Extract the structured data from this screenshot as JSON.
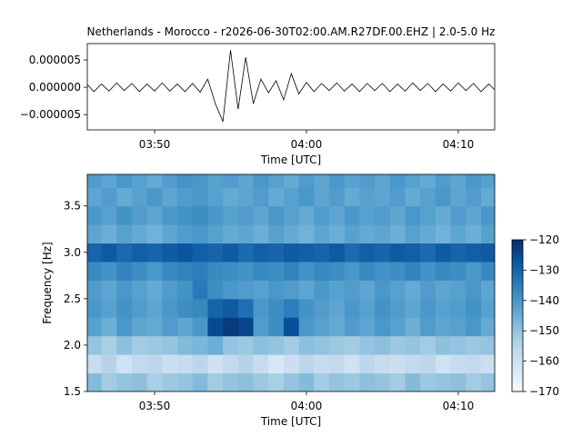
{
  "chart_data": [
    {
      "type": "line",
      "title": "Netherlands - Morocco - r2026-06-30T02:00.AM.R27DF.00.EHZ | 2.0-5.0 Hz",
      "x_label": "Time [UTC]",
      "color": "#000000",
      "x": [
        "03:45:30",
        "03:46:00",
        "03:46:30",
        "03:47:00",
        "03:47:30",
        "03:48:00",
        "03:48:30",
        "03:49:00",
        "03:49:30",
        "03:50:00",
        "03:50:30",
        "03:51:00",
        "03:51:30",
        "03:52:00",
        "03:52:30",
        "03:53:00",
        "03:53:30",
        "03:54:00",
        "03:54:30",
        "03:55:00",
        "03:55:30",
        "03:56:00",
        "03:56:30",
        "03:57:00",
        "03:57:30",
        "03:58:00",
        "03:58:30",
        "03:59:00",
        "03:59:30",
        "04:00:00",
        "04:00:30",
        "04:01:00",
        "04:01:30",
        "04:02:00",
        "04:02:30",
        "04:03:00",
        "04:03:30",
        "04:04:00",
        "04:04:30",
        "04:05:00",
        "04:05:30",
        "04:06:00",
        "04:06:30",
        "04:07:00",
        "04:07:30",
        "04:08:00",
        "04:08:30",
        "04:09:00",
        "04:09:30",
        "04:10:00",
        "04:10:30",
        "04:11:00",
        "04:11:30",
        "04:12:00",
        "04:12:30"
      ],
      "values": [
        7e-07,
        -8e-07,
        6e-07,
        -7e-07,
        8e-07,
        -6e-07,
        7e-07,
        -8e-07,
        6e-07,
        -7e-07,
        8e-07,
        -7e-07,
        6e-07,
        -8e-07,
        7e-07,
        -9e-07,
        1.5e-06,
        -3e-06,
        -6.3e-06,
        6.8e-06,
        -4e-06,
        5.5e-06,
        -3e-06,
        1.5e-06,
        -1e-06,
        1.2e-06,
        -2.3e-06,
        2.5e-06,
        -1.2e-06,
        9e-07,
        -8e-07,
        7e-07,
        -6e-07,
        8e-07,
        -7e-07,
        6e-07,
        -8e-07,
        7e-07,
        -6e-07,
        7e-07,
        -8e-07,
        6e-07,
        -7e-07,
        8e-07,
        -6e-07,
        7e-07,
        -8e-07,
        6e-07,
        -7e-07,
        8e-07,
        -6e-07,
        7e-07,
        -8e-07,
        6e-07,
        -7e-07
      ],
      "xlim": [
        "03:45:34",
        "04:12:24"
      ],
      "xticks": [
        "03:50",
        "04:00",
        "04:10"
      ],
      "ylim": [
        -7.8e-06,
        8e-06
      ],
      "yticks": [
        {
          "value": -5e-06,
          "label": "−0.000005"
        },
        {
          "value": 0,
          "label": "0.000000"
        },
        {
          "value": 5e-06,
          "label": "0.000005"
        }
      ]
    },
    {
      "type": "heatmap",
      "x_label": "Time [UTC]",
      "y_label": "Frequency [Hz]",
      "colormap": "Blues",
      "clim": [
        -170,
        -120
      ],
      "colorbar_ticks": [
        {
          "value": -120,
          "label": "−120"
        },
        {
          "value": -130,
          "label": "−130"
        },
        {
          "value": -140,
          "label": "−140"
        },
        {
          "value": -150,
          "label": "−150"
        },
        {
          "value": -160,
          "label": "−160"
        },
        {
          "value": -170,
          "label": "−170"
        }
      ],
      "x": [
        "03:46",
        "03:47",
        "03:48",
        "03:49",
        "03:50",
        "03:51",
        "03:52",
        "03:53",
        "03:54",
        "03:55",
        "03:56",
        "03:57",
        "03:58",
        "03:59",
        "04:00",
        "04:01",
        "04:02",
        "04:03",
        "04:04",
        "04:05",
        "04:06",
        "04:07",
        "04:08",
        "04:09",
        "04:10",
        "04:11",
        "04:12"
      ],
      "y": [
        1.6,
        1.8,
        2.0,
        2.2,
        2.4,
        2.6,
        2.8,
        3.0,
        3.2,
        3.4,
        3.6,
        3.8
      ],
      "values": [
        [
          -148,
          -152,
          -150,
          -149,
          -153,
          -151,
          -150,
          -148,
          -152,
          -150,
          -149,
          -151,
          -153,
          -150,
          -148,
          -152,
          -150,
          -151,
          -149,
          -150,
          -152,
          -148,
          -151,
          -150,
          -149,
          -152,
          -150
        ],
        [
          -158,
          -155,
          -160,
          -157,
          -156,
          -159,
          -158,
          -156,
          -160,
          -157,
          -155,
          -158,
          -162,
          -159,
          -156,
          -158,
          -157,
          -160,
          -156,
          -158,
          -159,
          -157,
          -156,
          -160,
          -158,
          -157,
          -159
        ],
        [
          -150,
          -153,
          -149,
          -152,
          -151,
          -150,
          -148,
          -147,
          -145,
          -150,
          -151,
          -149,
          -150,
          -152,
          -149,
          -150,
          -151,
          -152,
          -150,
          -149,
          -151,
          -150,
          -152,
          -149,
          -150,
          -151,
          -150
        ],
        [
          -142,
          -145,
          -140,
          -143,
          -144,
          -141,
          -143,
          -140,
          -125,
          -122,
          -124,
          -141,
          -138,
          -126,
          -140,
          -142,
          -144,
          -141,
          -143,
          -140,
          -142,
          -145,
          -141,
          -143,
          -142,
          -140,
          -144
        ],
        [
          -140,
          -142,
          -139,
          -141,
          -143,
          -140,
          -138,
          -137,
          -130,
          -128,
          -132,
          -140,
          -138,
          -135,
          -139,
          -141,
          -143,
          -140,
          -142,
          -139,
          -141,
          -143,
          -140,
          -142,
          -141,
          -139,
          -142
        ],
        [
          -141,
          -143,
          -140,
          -142,
          -144,
          -141,
          -139,
          -134,
          -138,
          -140,
          -141,
          -142,
          -140,
          -141,
          -143,
          -140,
          -142,
          -141,
          -143,
          -140,
          -142,
          -144,
          -141,
          -143,
          -142,
          -140,
          -143
        ],
        [
          -137,
          -139,
          -136,
          -138,
          -140,
          -137,
          -136,
          -135,
          -137,
          -138,
          -139,
          -137,
          -138,
          -136,
          -139,
          -137,
          -138,
          -140,
          -137,
          -139,
          -138,
          -136,
          -139,
          -137,
          -138,
          -140,
          -137
        ],
        [
          -130,
          -128,
          -131,
          -129,
          -130,
          -128,
          -127,
          -129,
          -130,
          -128,
          -131,
          -129,
          -130,
          -128,
          -129,
          -130,
          -128,
          -131,
          -129,
          -130,
          -128,
          -129,
          -131,
          -128,
          -130,
          -129,
          -128
        ],
        [
          -143,
          -145,
          -142,
          -144,
          -146,
          -143,
          -141,
          -140,
          -142,
          -144,
          -143,
          -145,
          -142,
          -144,
          -146,
          -143,
          -145,
          -142,
          -144,
          -143,
          -145,
          -142,
          -144,
          -146,
          -143,
          -145,
          -142
        ],
        [
          -140,
          -142,
          -139,
          -141,
          -143,
          -140,
          -139,
          -138,
          -140,
          -142,
          -141,
          -143,
          -140,
          -142,
          -144,
          -141,
          -143,
          -140,
          -142,
          -141,
          -143,
          -140,
          -142,
          -144,
          -141,
          -143,
          -140
        ],
        [
          -143,
          -141,
          -144,
          -142,
          -140,
          -143,
          -141,
          -140,
          -142,
          -144,
          -143,
          -141,
          -144,
          -142,
          -140,
          -143,
          -141,
          -144,
          -142,
          -143,
          -141,
          -144,
          -142,
          -140,
          -143,
          -141,
          -144
        ],
        [
          -141,
          -143,
          -140,
          -142,
          -144,
          -141,
          -139,
          -140,
          -142,
          -141,
          -143,
          -140,
          -142,
          -144,
          -141,
          -143,
          -140,
          -142,
          -141,
          -143,
          -140,
          -142,
          -144,
          -141,
          -143,
          -140,
          -142
        ]
      ],
      "xlim": [
        "03:45:34",
        "04:12:24"
      ],
      "xticks": [
        "03:50",
        "04:00",
        "04:10"
      ],
      "ylim": [
        1.5,
        3.84
      ],
      "yticks": [
        1.5,
        {
          "value": 2,
          "label": "2.0"
        },
        2.5,
        {
          "value": 3,
          "label": "3.0"
        },
        3.5
      ]
    }
  ]
}
